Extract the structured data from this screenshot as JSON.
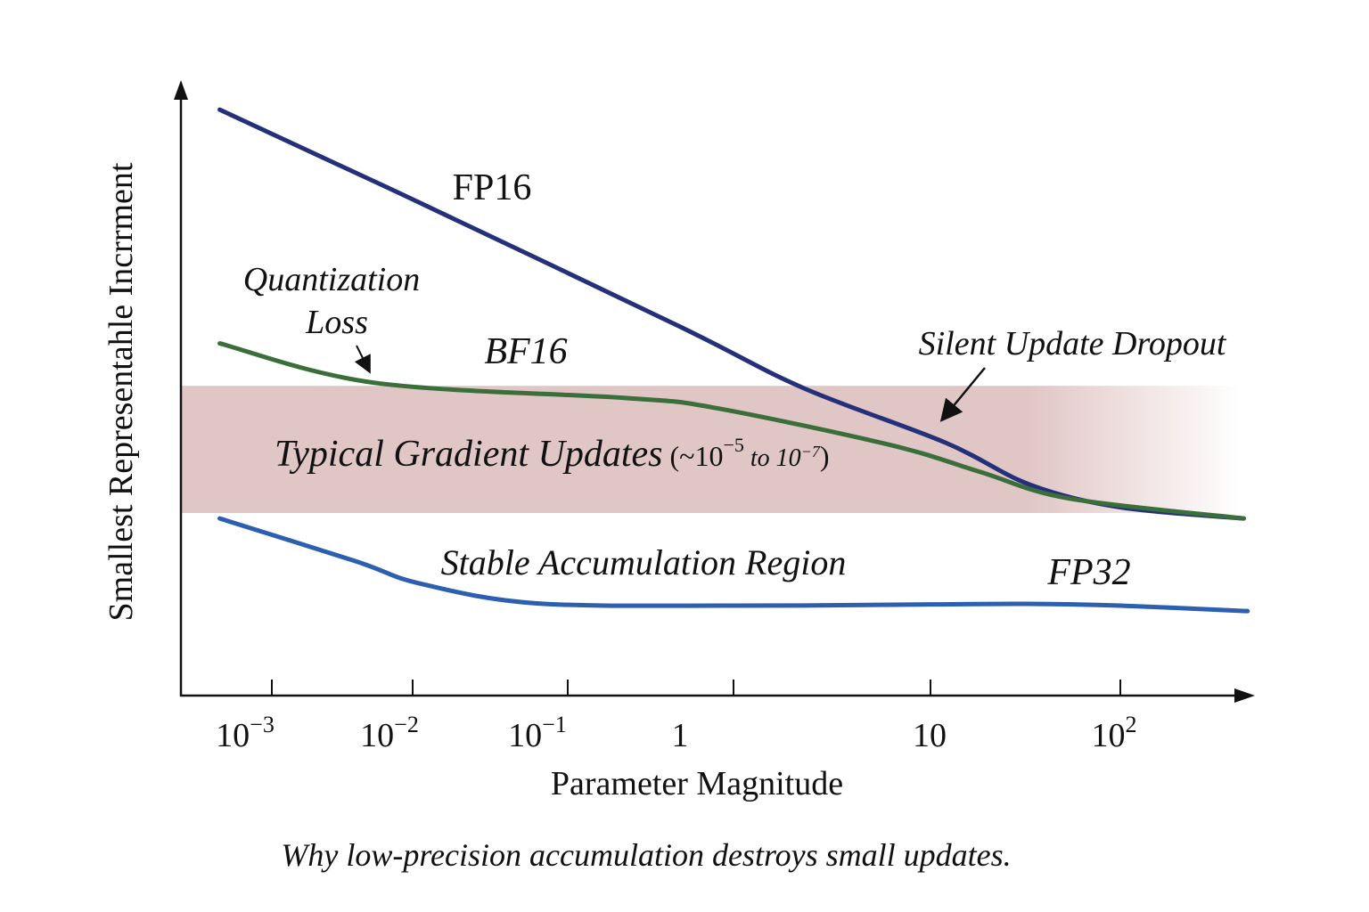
{
  "chart_data": {
    "type": "line",
    "title": "",
    "caption": "Why low-precision accumulation destroys small updates.",
    "xlabel": "Parameter Magnitude",
    "ylabel": "Smallest Representahle Incrrment",
    "xscale": "log",
    "xlim_log10": [
      -3.4,
      2.75
    ],
    "ylim": [
      0,
      100
    ],
    "y_units": "relative (unlabeled axis)",
    "grid": false,
    "x_ticks": [
      {
        "log10": -3,
        "base": "10",
        "exp": "−3"
      },
      {
        "log10": -2,
        "base": "10",
        "exp": "−2"
      },
      {
        "log10": -1,
        "base": "10",
        "exp": "−1"
      },
      {
        "log10": 0,
        "base": "1",
        "exp": ""
      },
      {
        "log10": 1,
        "base": "10",
        "exp": ""
      },
      {
        "log10": 2,
        "base": "10",
        "exp": "2"
      }
    ],
    "band": {
      "label_main": "Typical Gradient Updates",
      "label_open": "(~10",
      "label_exp1": "−5",
      "label_to": " to 10",
      "label_exp2": "−7",
      "label_close": ")",
      "y_range": [
        30,
        51
      ],
      "color": "#dcbcbc"
    },
    "series": [
      {
        "name": "FP16",
        "color": "#25307a",
        "x_log10": [
          -3.37,
          -2.02,
          -0.34,
          0.35,
          1.08,
          1.53,
          2.01,
          2.65
        ],
        "y": [
          96.6,
          82,
          61,
          50.7,
          41.6,
          34.6,
          30.9,
          29.1
        ]
      },
      {
        "name": "BF16",
        "color": "#3a6e3a",
        "x_log10": [
          -3.37,
          -2.27,
          -0.66,
          -0.12,
          0.8,
          1.26,
          1.73,
          2.65
        ],
        "y": [
          58,
          51.5,
          49,
          47.4,
          41.2,
          36.8,
          32.4,
          29.1
        ]
      },
      {
        "name": "FP32",
        "color": "#2d5fb0",
        "x_log10": [
          -3.37,
          -2.4,
          -1.96,
          -1.21,
          0,
          1,
          1.5,
          2,
          2.67
        ],
        "y": [
          29.1,
          22,
          18.4,
          15.1,
          14.7,
          14.9,
          15,
          14.7,
          13.8
        ]
      }
    ],
    "annotations": {
      "fp16": "FP16",
      "bf16": "BF16",
      "fp32": "FP32",
      "quant_line1": "Quantization",
      "quant_line2": "Loss",
      "dropout": "Silent Update Dropout",
      "stable": "Stable Accumulation Region"
    }
  }
}
